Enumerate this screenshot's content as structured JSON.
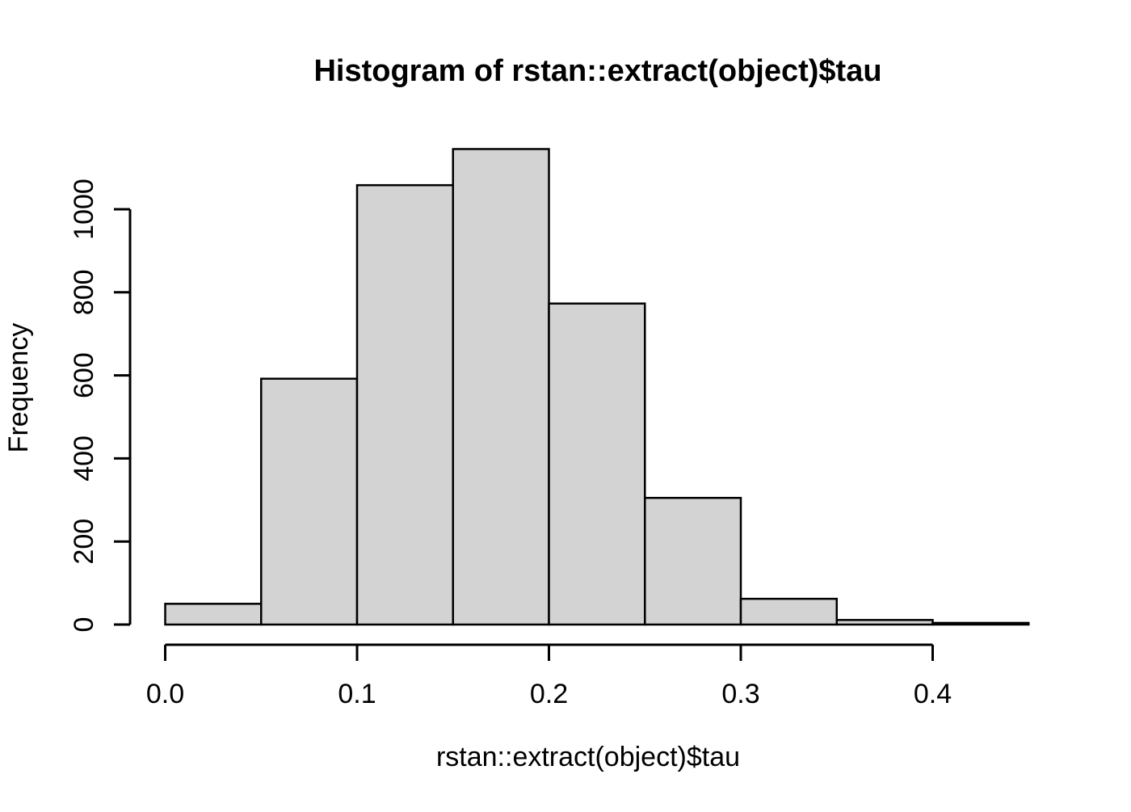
{
  "chart_data": {
    "type": "bar",
    "subtype": "histogram",
    "title": "Histogram of rstan::extract(object)$tau",
    "xlabel": "rstan::extract(object)$tau",
    "ylabel": "Frequency",
    "bin_edges": [
      0.0,
      0.05,
      0.1,
      0.15,
      0.2,
      0.25,
      0.3,
      0.35,
      0.4,
      0.45
    ],
    "counts": [
      50,
      592,
      1058,
      1145,
      773,
      305,
      62,
      11,
      4
    ],
    "x_ticks": {
      "values": [
        0.0,
        0.1,
        0.2,
        0.3,
        0.4
      ],
      "labels": [
        "0.0",
        "0.1",
        "0.2",
        "0.3",
        "0.4"
      ]
    },
    "y_ticks": {
      "values": [
        0,
        200,
        400,
        600,
        800,
        1000
      ],
      "labels": [
        "0",
        "200",
        "400",
        "600",
        "800",
        "1000"
      ]
    },
    "xlim": [
      0,
      0.45
    ],
    "ylim": [
      0,
      1150
    ],
    "grid": false,
    "legend": null,
    "colors": {
      "bar_fill": "#D3D3D3",
      "bar_border": "#000000",
      "axis": "#000000",
      "text": "#000000",
      "background": "#FFFFFF"
    }
  }
}
